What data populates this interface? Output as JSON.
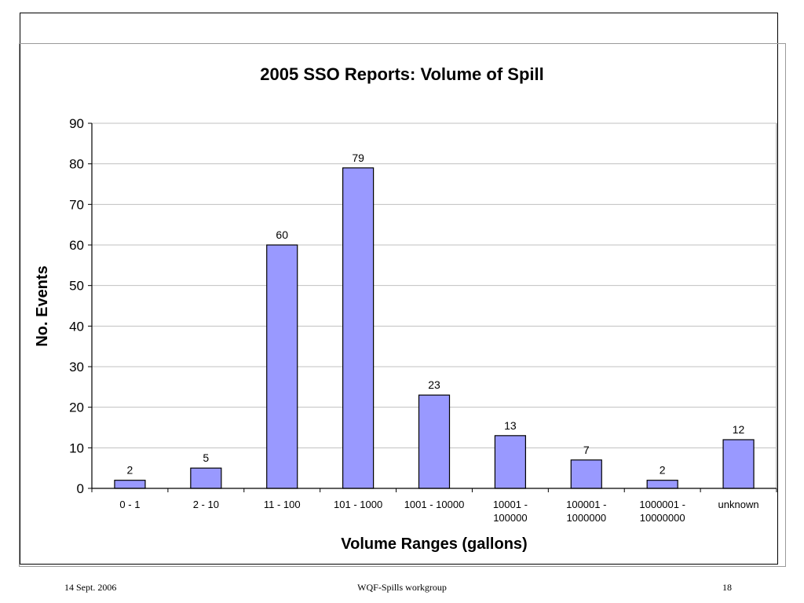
{
  "chart_data": {
    "type": "bar",
    "title": "2005 SSO Reports: Volume of Spill",
    "xlabel": "Volume Ranges (gallons)",
    "ylabel": "No. Events",
    "ylim": [
      0,
      90
    ],
    "yticks": [
      0,
      10,
      20,
      30,
      40,
      50,
      60,
      70,
      80,
      90
    ],
    "categories": [
      [
        "0 - 1"
      ],
      [
        "2 - 10"
      ],
      [
        "11 - 100"
      ],
      [
        "101 - 1000"
      ],
      [
        "1001 - 10000"
      ],
      [
        "10001 -",
        "100000"
      ],
      [
        "100001 -",
        "1000000"
      ],
      [
        "1000001 -",
        "10000000"
      ],
      [
        "unknown"
      ]
    ],
    "values": [
      2,
      5,
      60,
      79,
      23,
      13,
      7,
      2,
      12
    ],
    "grid": true,
    "legend": "none",
    "bar_color": "#9999ff"
  },
  "footer": {
    "date": "14 Sept. 2006",
    "center": "WQF-Spills workgroup",
    "page": "18"
  }
}
